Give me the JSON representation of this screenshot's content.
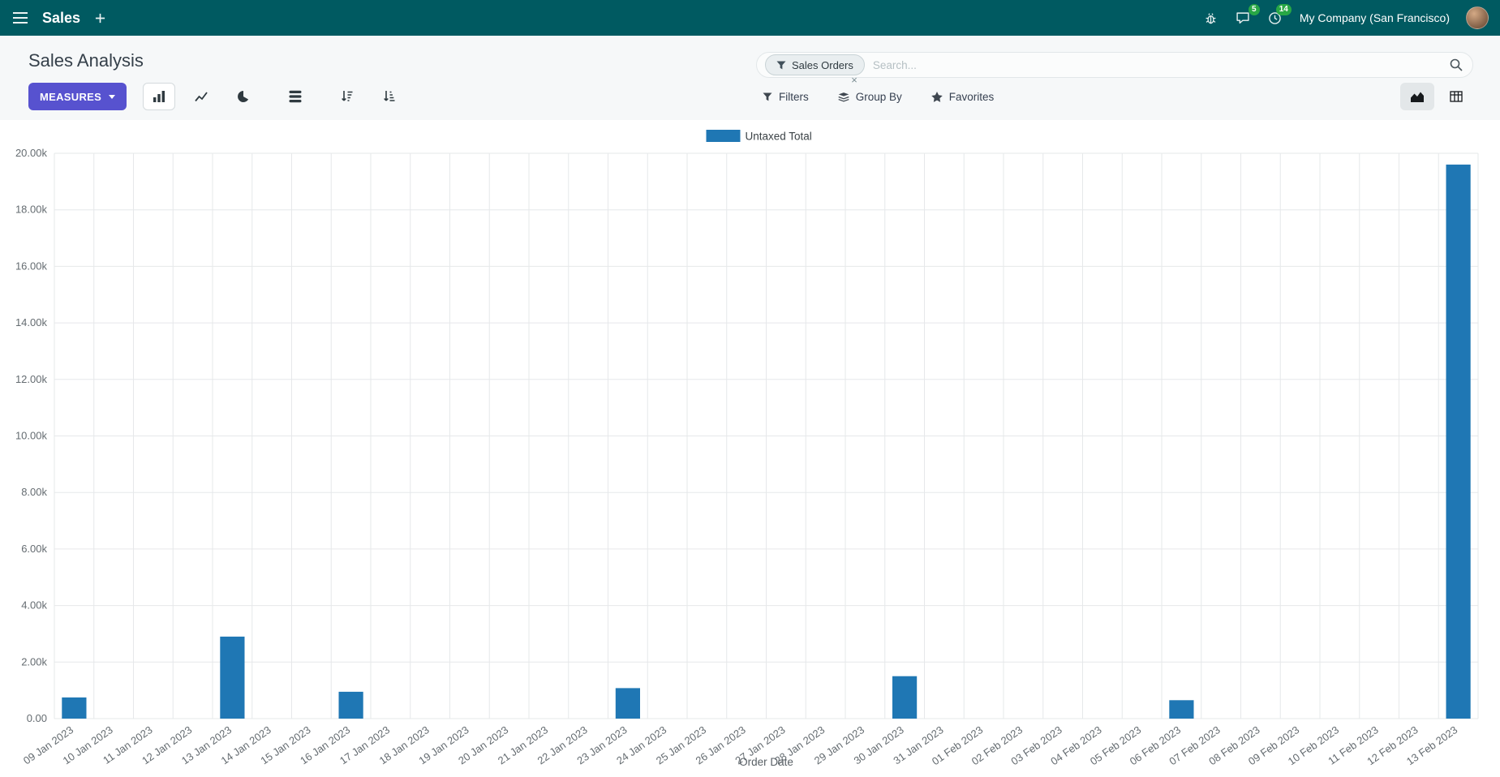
{
  "top_nav": {
    "app_name": "Sales",
    "company": "My Company (San Francisco)",
    "chat_badge": "5",
    "activity_badge": "14"
  },
  "control_panel": {
    "title": "Sales Analysis",
    "measures_label": "MEASURES",
    "search": {
      "facet": "Sales Orders",
      "facet_remove": "×",
      "placeholder": "Search..."
    },
    "buttons": {
      "filters": "Filters",
      "group_by": "Group By",
      "favorites": "Favorites"
    }
  },
  "icons": {
    "menu-icon": "hamburger",
    "plus-icon": "+",
    "bug-icon": "bug",
    "messages-icon": "speech-bubble",
    "activities-icon": "clock",
    "search-icon": "magnifier",
    "filter-icon": "funnel",
    "group-by-icon": "layers",
    "favorites-icon": "star",
    "bar-chart-icon": "bars",
    "line-chart-icon": "line",
    "pie-chart-icon": "pie",
    "stacked-icon": "stack",
    "sort-desc-icon": "arrow-down-wide",
    "sort-asc-icon": "arrow-down-narrow",
    "graph-view-icon": "area",
    "pivot-view-icon": "grid",
    "caret-down-icon": "▾"
  },
  "colors": {
    "topbar": "#005a61",
    "primary_button": "#5752cf",
    "badge_green": "#28a745",
    "bar_blue": "#1f77b4"
  },
  "chart_data": {
    "type": "bar",
    "title": "",
    "legend": [
      "Untaxed Total"
    ],
    "legend_position": "top",
    "series_color": "#1f77b4",
    "categories": [
      "09 Jan 2023",
      "10 Jan 2023",
      "11 Jan 2023",
      "12 Jan 2023",
      "13 Jan 2023",
      "14 Jan 2023",
      "15 Jan 2023",
      "16 Jan 2023",
      "17 Jan 2023",
      "18 Jan 2023",
      "19 Jan 2023",
      "20 Jan 2023",
      "21 Jan 2023",
      "22 Jan 2023",
      "23 Jan 2023",
      "24 Jan 2023",
      "25 Jan 2023",
      "26 Jan 2023",
      "27 Jan 2023",
      "28 Jan 2023",
      "29 Jan 2023",
      "30 Jan 2023",
      "31 Jan 2023",
      "01 Feb 2023",
      "02 Feb 2023",
      "03 Feb 2023",
      "04 Feb 2023",
      "05 Feb 2023",
      "06 Feb 2023",
      "07 Feb 2023",
      "08 Feb 2023",
      "09 Feb 2023",
      "10 Feb 2023",
      "11 Feb 2023",
      "12 Feb 2023",
      "13 Feb 2023"
    ],
    "values": [
      750,
      0,
      0,
      0,
      2900,
      0,
      0,
      950,
      0,
      0,
      0,
      0,
      0,
      0,
      1080,
      0,
      0,
      0,
      0,
      0,
      0,
      1500,
      0,
      0,
      0,
      0,
      0,
      0,
      650,
      0,
      0,
      0,
      0,
      0,
      0,
      19600
    ],
    "xlabel": "Order Date",
    "ylabel": "",
    "ylim": [
      0,
      20000
    ],
    "ytick_step": 2000,
    "ytick_labels": [
      "0.00",
      "2.00k",
      "4.00k",
      "6.00k",
      "8.00k",
      "10.00k",
      "12.00k",
      "14.00k",
      "16.00k",
      "18.00k",
      "20.00k"
    ],
    "grid": true
  }
}
